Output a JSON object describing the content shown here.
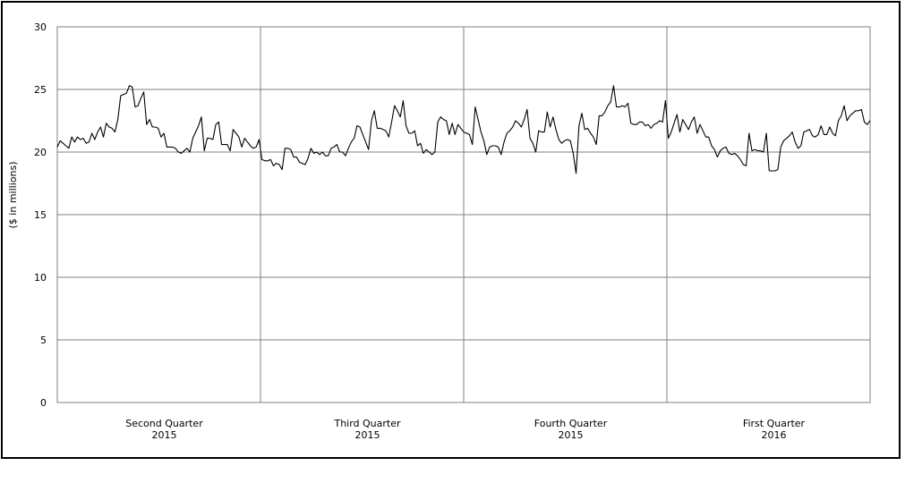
{
  "chart_data": {
    "type": "line",
    "title": "",
    "xlabel": "",
    "ylabel": "($ in millions)",
    "ylim": [
      0,
      30
    ],
    "yticks": [
      "0",
      "5",
      "10",
      "15",
      "20",
      "25",
      "30"
    ],
    "grid": true,
    "legend": "none",
    "line_color": "#000000",
    "grid_color": "#808080",
    "quarters": [
      {
        "label_line1": "Second Quarter",
        "label_line2": "2015"
      },
      {
        "label_line1": "Third Quarter",
        "label_line2": "2015"
      },
      {
        "label_line1": "Fourth Quarter",
        "label_line2": "2015"
      },
      {
        "label_line1": "First Quarter",
        "label_line2": "2016"
      }
    ],
    "series": [
      {
        "values": [
          20.4,
          20.9,
          20.7,
          20.5,
          20.3,
          21.2,
          20.8,
          21.2,
          21.0,
          21.1,
          20.7,
          20.8,
          21.5,
          21.0,
          21.6,
          22.0,
          21.2,
          22.3,
          22.0,
          21.9,
          21.6,
          22.6,
          24.5,
          24.6,
          24.7,
          25.3,
          25.2,
          23.6,
          23.7,
          24.3,
          24.8,
          22.2,
          22.6,
          22.0,
          22.0,
          21.9,
          21.2,
          21.5,
          20.4,
          20.4,
          20.4,
          20.3,
          20.0,
          19.9,
          20.1,
          20.3,
          20.0,
          21.1,
          21.6,
          22.1,
          22.8,
          20.1,
          21.1,
          21.1,
          21.0,
          22.2,
          22.4,
          20.6,
          20.6,
          20.6,
          20.1,
          21.8,
          21.5,
          21.2,
          20.4,
          21.1,
          20.8,
          20.5,
          20.3,
          20.4,
          21.0,
          19.4,
          19.3,
          19.3,
          19.4,
          18.9,
          19.1,
          19.0,
          18.6,
          20.3,
          20.3,
          20.2,
          19.6,
          19.6,
          19.2,
          19.1,
          19.0,
          19.5,
          20.3,
          19.9,
          20.0,
          19.8,
          20.0,
          19.7,
          19.7,
          20.3,
          20.4,
          20.6,
          20.0,
          20.0,
          19.7,
          20.3,
          20.8,
          21.1,
          22.1,
          22.0,
          21.4,
          20.8,
          20.2,
          22.5,
          23.3,
          21.9,
          21.9,
          21.8,
          21.7,
          21.2,
          22.4,
          23.7,
          23.3,
          22.8,
          24.1,
          22.1,
          21.5,
          21.5,
          21.7,
          20.5,
          20.7,
          19.9,
          20.2,
          20.0,
          19.8,
          20.0,
          22.4,
          22.8,
          22.6,
          22.5,
          21.4,
          22.3,
          21.4,
          22.2,
          21.9,
          21.6,
          21.5,
          21.4,
          20.6,
          23.6,
          22.6,
          21.6,
          20.9,
          19.8,
          20.4,
          20.5,
          20.5,
          20.4,
          19.8,
          20.8,
          21.5,
          21.7,
          22.0,
          22.5,
          22.3,
          22.0,
          22.6,
          23.4,
          21.1,
          20.7,
          20.0,
          21.7,
          21.6,
          21.6,
          23.2,
          22.0,
          22.8,
          21.8,
          21.0,
          20.7,
          20.9,
          21.0,
          20.9,
          19.9,
          18.3,
          22.1,
          23.1,
          21.8,
          21.9,
          21.5,
          21.2,
          20.6,
          22.9,
          22.9,
          23.2,
          23.7,
          24.0,
          25.3,
          23.6,
          23.6,
          23.7,
          23.6,
          23.9,
          22.3,
          22.2,
          22.2,
          22.4,
          22.4,
          22.1,
          22.2,
          21.9,
          22.2,
          22.3,
          22.5,
          22.4,
          24.1,
          21.1,
          21.6,
          22.3,
          23.0,
          21.6,
          22.6,
          22.2,
          21.8,
          22.4,
          22.8,
          21.5,
          22.2,
          21.7,
          21.2,
          21.2,
          20.5,
          20.2,
          19.6,
          20.1,
          20.3,
          20.4,
          19.9,
          19.8,
          19.9,
          19.7,
          19.4,
          19.0,
          18.9,
          21.5,
          20.1,
          20.2,
          20.1,
          20.1,
          20.0,
          21.5,
          18.5,
          18.5,
          18.5,
          18.6,
          20.4,
          20.9,
          21.1,
          21.3,
          21.6,
          20.8,
          20.3,
          20.5,
          21.6,
          21.7,
          21.8,
          21.3,
          21.2,
          21.4,
          22.1,
          21.4,
          21.4,
          22.0,
          21.5,
          21.3,
          22.5,
          22.9,
          23.7,
          22.5,
          22.9,
          23.1,
          23.3,
          23.3,
          23.4,
          22.4,
          22.2,
          22.5
        ]
      }
    ]
  }
}
